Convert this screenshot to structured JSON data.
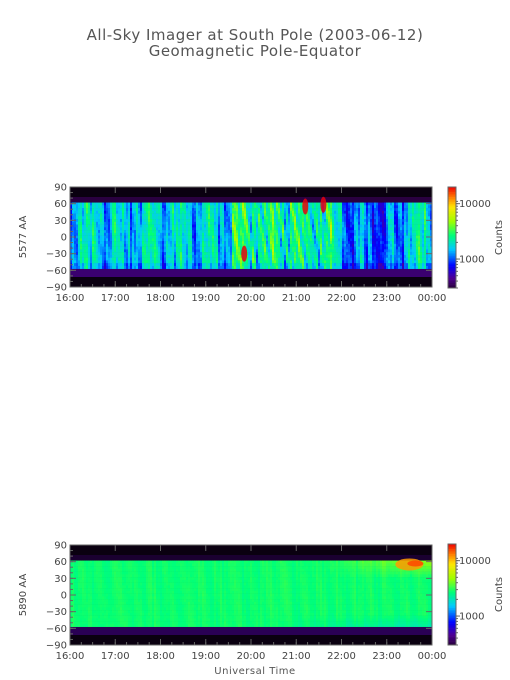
{
  "title": "All-Sky Imager at South Pole (2003-06-12)",
  "subtitle": "Geomagnetic Pole-Equator",
  "xlabel": "Universal Time",
  "chart_data": [
    {
      "type": "heatmap",
      "ylabel": "5577 AA",
      "x_ticks": [
        "16:00",
        "17:00",
        "18:00",
        "19:00",
        "20:00",
        "21:00",
        "22:00",
        "23:00",
        "00:00"
      ],
      "y_ticks": [
        90,
        60,
        30,
        0,
        -30,
        -60,
        -90
      ],
      "ylim": [
        -90,
        90
      ],
      "x_range_hours": [
        16,
        24
      ],
      "valid_y_range": [
        -57,
        62
      ],
      "colorbar": {
        "label": "Counts",
        "ticks": [
          10000,
          1000
        ],
        "tick_labels": [
          "10000",
          "1000"
        ],
        "scale": "log",
        "range": [
          300,
          20000
        ]
      },
      "features": [
        {
          "x_hours": 19.85,
          "y": -30,
          "level": "high"
        },
        {
          "x_hours": 21.2,
          "y": 55,
          "level": "high"
        },
        {
          "x_hours": 21.6,
          "y": 58,
          "level": "high"
        }
      ]
    },
    {
      "type": "heatmap",
      "ylabel": "5890 AA",
      "x_ticks": [
        "16:00",
        "17:00",
        "18:00",
        "19:00",
        "20:00",
        "21:00",
        "22:00",
        "23:00",
        "00:00"
      ],
      "y_ticks": [
        90,
        60,
        30,
        0,
        -30,
        -60,
        -90
      ],
      "ylim": [
        -90,
        90
      ],
      "x_range_hours": [
        16,
        24
      ],
      "valid_y_range": [
        -57,
        62
      ],
      "colorbar": {
        "label": "Counts",
        "ticks": [
          10000,
          1000
        ],
        "tick_labels": [
          "10000",
          "1000"
        ],
        "scale": "log",
        "range": [
          300,
          20000
        ]
      },
      "features": [
        {
          "x_hours": 23.5,
          "y": 55,
          "level": "high"
        }
      ]
    }
  ]
}
